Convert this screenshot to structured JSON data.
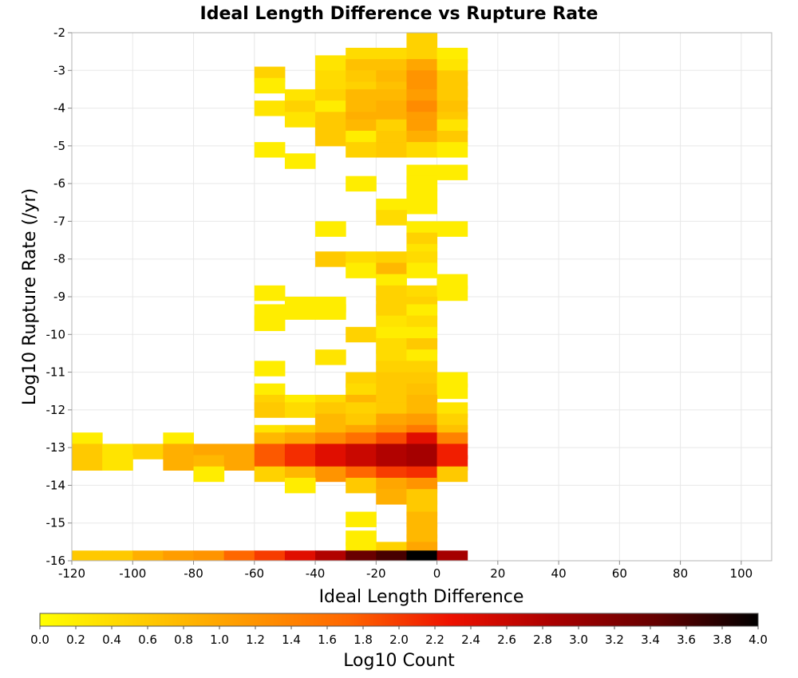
{
  "chart_data": {
    "type": "heatmap",
    "title": "Ideal Length Difference vs Rupture Rate",
    "xlabel": "Ideal Length Difference",
    "ylabel": "Log10 Rupture Rate (/yr)",
    "xlim": [
      -120,
      110
    ],
    "ylim": [
      -16,
      -2
    ],
    "xticks": [
      "-120",
      "-100",
      "-80",
      "-60",
      "-40",
      "-20",
      "0",
      "20",
      "40",
      "60",
      "80",
      "100"
    ],
    "yticks": [
      "-2",
      "-3",
      "-4",
      "-5",
      "-6",
      "-7",
      "-8",
      "-9",
      "-10",
      "-11",
      "-12",
      "-13",
      "-14",
      "-15",
      "-16"
    ],
    "grid": true,
    "bin_width_x": 10,
    "bin_height_y": 0.4,
    "colorbar": {
      "label": "Log10 Count",
      "range": [
        0,
        4
      ],
      "ticks": [
        "0.0",
        "0.2",
        "0.4",
        "0.6",
        "0.8",
        "1.0",
        "1.2",
        "1.4",
        "1.6",
        "1.8",
        "2.0",
        "2.2",
        "2.4",
        "2.6",
        "2.8",
        "3.0",
        "3.2",
        "3.4",
        "3.6",
        "3.8",
        "4.0"
      ],
      "colors": [
        "#ffff00",
        "#ffcc00",
        "#ff9900",
        "#ff6600",
        "#ee1100",
        "#aa0000",
        "#660000",
        "#000000"
      ]
    },
    "cells": [
      {
        "x": -25,
        "y": -2.6,
        "v": 0.4
      },
      {
        "x": -15,
        "y": -2.6,
        "v": 0.4
      },
      {
        "x": -5,
        "y": -2.2,
        "v": 0.5
      },
      {
        "x": -5,
        "y": -2.6,
        "v": 0.5
      },
      {
        "x": 5,
        "y": -2.6,
        "v": 0.2
      },
      {
        "x": -35,
        "y": -2.8,
        "v": 0.3
      },
      {
        "x": -25,
        "y": -2.9,
        "v": 0.7
      },
      {
        "x": -15,
        "y": -2.9,
        "v": 0.7
      },
      {
        "x": -5,
        "y": -2.9,
        "v": 1.0
      },
      {
        "x": 5,
        "y": -2.9,
        "v": 0.3
      },
      {
        "x": -55,
        "y": -3.1,
        "v": 0.5
      },
      {
        "x": -35,
        "y": -3.2,
        "v": 0.4
      },
      {
        "x": -25,
        "y": -3.2,
        "v": 0.6
      },
      {
        "x": -15,
        "y": -3.2,
        "v": 0.8
      },
      {
        "x": -5,
        "y": -3.2,
        "v": 1.2
      },
      {
        "x": 5,
        "y": -3.2,
        "v": 0.6
      },
      {
        "x": -55,
        "y": -3.4,
        "v": 0.2
      },
      {
        "x": -35,
        "y": -3.5,
        "v": 0.4
      },
      {
        "x": -25,
        "y": -3.5,
        "v": 0.5
      },
      {
        "x": -15,
        "y": -3.5,
        "v": 0.7
      },
      {
        "x": -5,
        "y": -3.5,
        "v": 1.2
      },
      {
        "x": 5,
        "y": -3.5,
        "v": 0.6
      },
      {
        "x": -45,
        "y": -3.7,
        "v": 0.3
      },
      {
        "x": -35,
        "y": -3.7,
        "v": 0.5
      },
      {
        "x": -25,
        "y": -3.7,
        "v": 0.8
      },
      {
        "x": -15,
        "y": -3.7,
        "v": 0.8
      },
      {
        "x": -5,
        "y": -3.7,
        "v": 1.1
      },
      {
        "x": 5,
        "y": -3.7,
        "v": 0.6
      },
      {
        "x": -55,
        "y": -4.0,
        "v": 0.3
      },
      {
        "x": -45,
        "y": -4.0,
        "v": 0.5
      },
      {
        "x": -35,
        "y": -4.0,
        "v": 0.2
      },
      {
        "x": -25,
        "y": -4.0,
        "v": 0.8
      },
      {
        "x": -15,
        "y": -4.0,
        "v": 0.9
      },
      {
        "x": -5,
        "y": -4.0,
        "v": 1.3
      },
      {
        "x": 5,
        "y": -4.0,
        "v": 0.7
      },
      {
        "x": -45,
        "y": -4.3,
        "v": 0.3
      },
      {
        "x": -35,
        "y": -4.3,
        "v": 0.6
      },
      {
        "x": -25,
        "y": -4.3,
        "v": 0.9
      },
      {
        "x": -15,
        "y": -4.3,
        "v": 0.9
      },
      {
        "x": -5,
        "y": -4.3,
        "v": 1.1
      },
      {
        "x": 5,
        "y": -4.3,
        "v": 0.6
      },
      {
        "x": -35,
        "y": -4.5,
        "v": 0.6
      },
      {
        "x": -25,
        "y": -4.5,
        "v": 0.8
      },
      {
        "x": -15,
        "y": -4.5,
        "v": 0.5
      },
      {
        "x": -5,
        "y": -4.5,
        "v": 1.1
      },
      {
        "x": 5,
        "y": -4.5,
        "v": 0.3
      },
      {
        "x": -35,
        "y": -4.8,
        "v": 0.6
      },
      {
        "x": -25,
        "y": -4.8,
        "v": 0.2
      },
      {
        "x": -15,
        "y": -4.8,
        "v": 0.6
      },
      {
        "x": -5,
        "y": -4.8,
        "v": 0.9
      },
      {
        "x": 5,
        "y": -4.8,
        "v": 0.6
      },
      {
        "x": -55,
        "y": -5.1,
        "v": 0.2
      },
      {
        "x": -25,
        "y": -5.1,
        "v": 0.5
      },
      {
        "x": -15,
        "y": -5.1,
        "v": 0.6
      },
      {
        "x": -5,
        "y": -5.1,
        "v": 0.4
      },
      {
        "x": 5,
        "y": -5.1,
        "v": 0.2
      },
      {
        "x": -45,
        "y": -5.4,
        "v": 0.2
      },
      {
        "x": -5,
        "y": -5.7,
        "v": 0.2
      },
      {
        "x": 5,
        "y": -5.7,
        "v": 0.2
      },
      {
        "x": -5,
        "y": -6.0,
        "v": 0.2
      },
      {
        "x": -25,
        "y": -6.0,
        "v": 0.2
      },
      {
        "x": -5,
        "y": -6.3,
        "v": 0.2
      },
      {
        "x": -15,
        "y": -6.6,
        "v": 0.2
      },
      {
        "x": -5,
        "y": -6.6,
        "v": 0.2
      },
      {
        "x": -15,
        "y": -6.9,
        "v": 0.4
      },
      {
        "x": -35,
        "y": -7.2,
        "v": 0.2
      },
      {
        "x": -5,
        "y": -7.2,
        "v": 0.2
      },
      {
        "x": 5,
        "y": -7.2,
        "v": 0.2
      },
      {
        "x": -5,
        "y": -7.5,
        "v": 0.5
      },
      {
        "x": -5,
        "y": -7.8,
        "v": 0.3
      },
      {
        "x": -35,
        "y": -8.0,
        "v": 0.6
      },
      {
        "x": -25,
        "y": -8.0,
        "v": 0.4
      },
      {
        "x": -15,
        "y": -8.0,
        "v": 0.5
      },
      {
        "x": -5,
        "y": -8.0,
        "v": 0.4
      },
      {
        "x": -25,
        "y": -8.3,
        "v": 0.2
      },
      {
        "x": -15,
        "y": -8.3,
        "v": 0.8
      },
      {
        "x": -5,
        "y": -8.3,
        "v": 0.2
      },
      {
        "x": -15,
        "y": -8.6,
        "v": 0.2
      },
      {
        "x": 5,
        "y": -8.6,
        "v": 0.2
      },
      {
        "x": -55,
        "y": -8.9,
        "v": 0.2
      },
      {
        "x": -15,
        "y": -8.9,
        "v": 0.5
      },
      {
        "x": -5,
        "y": -8.9,
        "v": 0.4
      },
      {
        "x": 5,
        "y": -8.9,
        "v": 0.2
      },
      {
        "x": -45,
        "y": -9.2,
        "v": 0.2
      },
      {
        "x": -35,
        "y": -9.2,
        "v": 0.2
      },
      {
        "x": -15,
        "y": -9.2,
        "v": 0.5
      },
      {
        "x": -5,
        "y": -9.2,
        "v": 0.5
      },
      {
        "x": -55,
        "y": -9.4,
        "v": 0.2
      },
      {
        "x": -45,
        "y": -9.4,
        "v": 0.2
      },
      {
        "x": -35,
        "y": -9.4,
        "v": 0.2
      },
      {
        "x": -15,
        "y": -9.4,
        "v": 0.5
      },
      {
        "x": -5,
        "y": -9.4,
        "v": 0.2
      },
      {
        "x": -55,
        "y": -9.7,
        "v": 0.2
      },
      {
        "x": -15,
        "y": -9.7,
        "v": 0.3
      },
      {
        "x": -5,
        "y": -9.7,
        "v": 0.4
      },
      {
        "x": -25,
        "y": -10.0,
        "v": 0.5
      },
      {
        "x": -15,
        "y": -10.0,
        "v": 0.2
      },
      {
        "x": -5,
        "y": -10.0,
        "v": 0.2
      },
      {
        "x": -15,
        "y": -10.3,
        "v": 0.4
      },
      {
        "x": -5,
        "y": -10.3,
        "v": 0.6
      },
      {
        "x": -35,
        "y": -10.6,
        "v": 0.3
      },
      {
        "x": -15,
        "y": -10.6,
        "v": 0.4
      },
      {
        "x": -5,
        "y": -10.6,
        "v": 0.2
      },
      {
        "x": -55,
        "y": -10.9,
        "v": 0.2
      },
      {
        "x": -15,
        "y": -10.9,
        "v": 0.5
      },
      {
        "x": -5,
        "y": -10.9,
        "v": 0.5
      },
      {
        "x": -25,
        "y": -11.2,
        "v": 0.5
      },
      {
        "x": -15,
        "y": -11.2,
        "v": 0.6
      },
      {
        "x": -5,
        "y": -11.2,
        "v": 0.6
      },
      {
        "x": 5,
        "y": -11.2,
        "v": 0.2
      },
      {
        "x": -55,
        "y": -11.5,
        "v": 0.2
      },
      {
        "x": -25,
        "y": -11.5,
        "v": 0.4
      },
      {
        "x": -15,
        "y": -11.5,
        "v": 0.6
      },
      {
        "x": -5,
        "y": -11.5,
        "v": 0.7
      },
      {
        "x": 5,
        "y": -11.5,
        "v": 0.2
      },
      {
        "x": -55,
        "y": -11.8,
        "v": 0.5
      },
      {
        "x": -45,
        "y": -11.8,
        "v": 0.2
      },
      {
        "x": -35,
        "y": -11.8,
        "v": 0.4
      },
      {
        "x": -25,
        "y": -11.8,
        "v": 0.8
      },
      {
        "x": -15,
        "y": -11.8,
        "v": 0.6
      },
      {
        "x": -5,
        "y": -11.8,
        "v": 0.8
      },
      {
        "x": -55,
        "y": -12.0,
        "v": 0.6
      },
      {
        "x": -45,
        "y": -12.0,
        "v": 0.4
      },
      {
        "x": -35,
        "y": -12.0,
        "v": 0.6
      },
      {
        "x": -25,
        "y": -12.0,
        "v": 0.5
      },
      {
        "x": -15,
        "y": -12.0,
        "v": 0.6
      },
      {
        "x": -5,
        "y": -12.0,
        "v": 0.8
      },
      {
        "x": 5,
        "y": -12.0,
        "v": 0.3
      },
      {
        "x": -35,
        "y": -12.3,
        "v": 0.8
      },
      {
        "x": -25,
        "y": -12.3,
        "v": 0.6
      },
      {
        "x": -15,
        "y": -12.3,
        "v": 1.0
      },
      {
        "x": -5,
        "y": -12.3,
        "v": 1.1
      },
      {
        "x": 5,
        "y": -12.3,
        "v": 0.5
      },
      {
        "x": -55,
        "y": -12.6,
        "v": 0.3
      },
      {
        "x": -45,
        "y": -12.6,
        "v": 0.5
      },
      {
        "x": -35,
        "y": -12.6,
        "v": 0.8
      },
      {
        "x": -25,
        "y": -12.6,
        "v": 1.0
      },
      {
        "x": -15,
        "y": -12.6,
        "v": 1.2
      },
      {
        "x": -5,
        "y": -12.6,
        "v": 1.5
      },
      {
        "x": 5,
        "y": -12.6,
        "v": 0.7
      },
      {
        "x": -115,
        "y": -12.8,
        "v": 0.2
      },
      {
        "x": -85,
        "y": -12.8,
        "v": 0.2
      },
      {
        "x": -55,
        "y": -12.8,
        "v": 0.8
      },
      {
        "x": -45,
        "y": -12.8,
        "v": 1.0
      },
      {
        "x": -35,
        "y": -12.8,
        "v": 1.3
      },
      {
        "x": -25,
        "y": -12.8,
        "v": 1.6
      },
      {
        "x": -15,
        "y": -12.8,
        "v": 1.9
      },
      {
        "x": -5,
        "y": -12.8,
        "v": 2.4
      },
      {
        "x": 5,
        "y": -12.8,
        "v": 1.4
      },
      {
        "x": -115,
        "y": -13.1,
        "v": 0.6
      },
      {
        "x": -105,
        "y": -13.1,
        "v": 0.3
      },
      {
        "x": -95,
        "y": -13.1,
        "v": 0.5
      },
      {
        "x": -85,
        "y": -13.1,
        "v": 0.9
      },
      {
        "x": -75,
        "y": -13.1,
        "v": 1.0
      },
      {
        "x": -65,
        "y": -13.1,
        "v": 1.0
      },
      {
        "x": -55,
        "y": -13.1,
        "v": 1.8
      },
      {
        "x": -45,
        "y": -13.1,
        "v": 2.1
      },
      {
        "x": -35,
        "y": -13.1,
        "v": 2.4
      },
      {
        "x": -25,
        "y": -13.1,
        "v": 2.6
      },
      {
        "x": -15,
        "y": -13.1,
        "v": 2.8
      },
      {
        "x": -5,
        "y": -13.1,
        "v": 2.9
      },
      {
        "x": 5,
        "y": -13.1,
        "v": 2.2
      },
      {
        "x": -115,
        "y": -13.4,
        "v": 0.6
      },
      {
        "x": -105,
        "y": -13.4,
        "v": 0.3
      },
      {
        "x": -85,
        "y": -13.4,
        "v": 0.9
      },
      {
        "x": -75,
        "y": -13.4,
        "v": 0.8
      },
      {
        "x": -65,
        "y": -13.4,
        "v": 1.0
      },
      {
        "x": -55,
        "y": -13.4,
        "v": 1.8
      },
      {
        "x": -45,
        "y": -13.4,
        "v": 2.1
      },
      {
        "x": -35,
        "y": -13.4,
        "v": 2.4
      },
      {
        "x": -25,
        "y": -13.4,
        "v": 2.6
      },
      {
        "x": -15,
        "y": -13.4,
        "v": 2.8
      },
      {
        "x": -5,
        "y": -13.4,
        "v": 2.9
      },
      {
        "x": 5,
        "y": -13.4,
        "v": 2.2
      },
      {
        "x": -75,
        "y": -13.7,
        "v": 0.2
      },
      {
        "x": -55,
        "y": -13.7,
        "v": 0.5
      },
      {
        "x": -45,
        "y": -13.7,
        "v": 0.8
      },
      {
        "x": -35,
        "y": -13.7,
        "v": 1.2
      },
      {
        "x": -25,
        "y": -13.7,
        "v": 1.7
      },
      {
        "x": -15,
        "y": -13.7,
        "v": 2.0
      },
      {
        "x": -5,
        "y": -13.7,
        "v": 2.1
      },
      {
        "x": 5,
        "y": -13.7,
        "v": 0.6
      },
      {
        "x": -45,
        "y": -14.0,
        "v": 0.2
      },
      {
        "x": -25,
        "y": -14.0,
        "v": 0.6
      },
      {
        "x": -15,
        "y": -14.0,
        "v": 1.0
      },
      {
        "x": -5,
        "y": -14.0,
        "v": 1.2
      },
      {
        "x": -15,
        "y": -14.3,
        "v": 0.9
      },
      {
        "x": -5,
        "y": -14.3,
        "v": 0.6
      },
      {
        "x": -5,
        "y": -14.6,
        "v": 0.6
      },
      {
        "x": -5,
        "y": -14.9,
        "v": 0.8
      },
      {
        "x": -25,
        "y": -14.9,
        "v": 0.2
      },
      {
        "x": -5,
        "y": -15.2,
        "v": 0.8
      },
      {
        "x": -5,
        "y": -15.5,
        "v": 0.8
      },
      {
        "x": -25,
        "y": -15.4,
        "v": 0.2
      },
      {
        "x": -25,
        "y": -15.7,
        "v": 0.2
      },
      {
        "x": -15,
        "y": -15.7,
        "v": 0.5
      },
      {
        "x": -5,
        "y": -15.7,
        "v": 1.0
      },
      {
        "x": -115,
        "y": -15.93,
        "v": 0.6
      },
      {
        "x": -105,
        "y": -15.93,
        "v": 0.6
      },
      {
        "x": -95,
        "y": -15.93,
        "v": 0.9
      },
      {
        "x": -85,
        "y": -15.93,
        "v": 1.1
      },
      {
        "x": -75,
        "y": -15.93,
        "v": 1.2
      },
      {
        "x": -65,
        "y": -15.93,
        "v": 1.7
      },
      {
        "x": -55,
        "y": -15.93,
        "v": 2.0
      },
      {
        "x": -45,
        "y": -15.93,
        "v": 2.4
      },
      {
        "x": -35,
        "y": -15.93,
        "v": 2.8
      },
      {
        "x": -25,
        "y": -15.93,
        "v": 3.4
      },
      {
        "x": -15,
        "y": -15.93,
        "v": 3.6
      },
      {
        "x": -5,
        "y": -15.93,
        "v": 4.0
      },
      {
        "x": 5,
        "y": -15.93,
        "v": 2.9
      }
    ]
  }
}
